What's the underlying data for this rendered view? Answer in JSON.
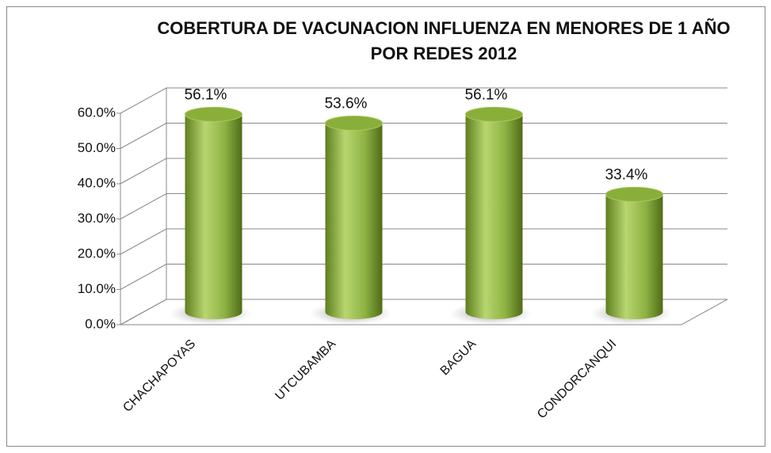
{
  "chart_data": {
    "type": "bar",
    "title": "COBERTURA DE VACUNACION INFLUENZA EN MENORES DE 1 AÑO POR REDES 2012",
    "categories": [
      "CHACHAPOYAS",
      "UTCUBAMBA",
      "BAGUA",
      "CONDORCANQUI"
    ],
    "values": [
      56.1,
      53.6,
      56.1,
      33.4
    ],
    "value_labels": [
      "56.1%",
      "53.6%",
      "56.1%",
      "33.4%"
    ],
    "color": "#8db142",
    "ylim": [
      0,
      60
    ],
    "yticks": [
      {
        "value": 0,
        "label": "0.0%"
      },
      {
        "value": 10,
        "label": "10.0%"
      },
      {
        "value": 20,
        "label": "20.0%"
      },
      {
        "value": 30,
        "label": "30.0%"
      },
      {
        "value": 40,
        "label": "40.0%"
      },
      {
        "value": 50,
        "label": "50.0%"
      },
      {
        "value": 60,
        "label": "60.0%"
      }
    ],
    "grid": true
  }
}
